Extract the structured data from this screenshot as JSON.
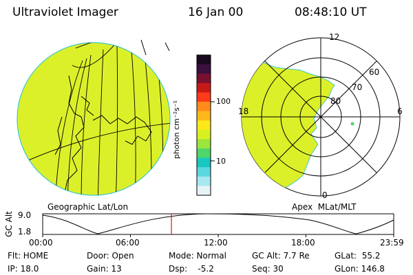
{
  "header": {
    "instrument": "Ultraviolet Imager",
    "date": "16 Jan 00",
    "time": "08:48:10 UT"
  },
  "colorbar": {
    "unit_label": "photon cm⁻²s⁻¹",
    "ticks": [
      "100",
      "10"
    ],
    "colors": [
      "#1a0a1f",
      "#3b1040",
      "#7a1030",
      "#c81818",
      "#ff3b1a",
      "#ff8c1a",
      "#ffb81a",
      "#ffe81a",
      "#d8f020",
      "#9ae63c",
      "#4fd66a",
      "#18c8c0",
      "#5ad8e0",
      "#a8e8ef",
      "#e6f4f7"
    ]
  },
  "left_map": {
    "caption": "Geographic Lat/Lon",
    "fill_color": "#dcf02a"
  },
  "right_map": {
    "caption": "Apex  MLat/MLT",
    "mlt_labels": {
      "top": "12",
      "right": "6",
      "left": "18",
      "bottom": "0"
    },
    "mlat_labels": [
      "80",
      "70",
      "60"
    ],
    "fill_color": "#dcf02a"
  },
  "altitude_plot": {
    "ylabel": "GC Alt",
    "y_ticks": [
      "9.0",
      "1.8"
    ],
    "x_ticks": [
      "00:00",
      "06:00",
      "12:00",
      "18:00",
      "23:59"
    ],
    "current_time_marker_hours": 8.8
  },
  "status": {
    "flt": "Flt: HOME",
    "ip": "IP: 18.0",
    "door": "Door: Open",
    "gain": "Gain: 13",
    "mode": "Mode: Normal",
    "dsp": "Dsp:    -5.2",
    "gc_alt": "GC Alt: 7.7 Re",
    "seq": "Seq: 30",
    "glat": "GLat:  55.2",
    "glon": "GLon: 146.8"
  }
}
